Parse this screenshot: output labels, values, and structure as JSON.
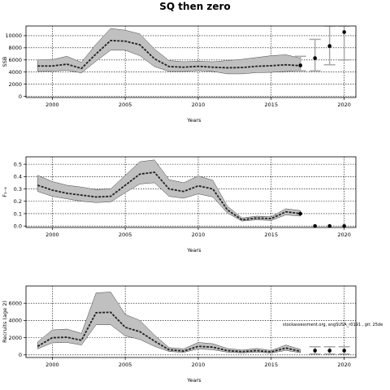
{
  "figure": {
    "title": "SQ then zero"
  },
  "chart_data": [
    {
      "type": "line",
      "id": "ssb",
      "title": "",
      "xlabel": "Years",
      "ylabel": "SSB",
      "xlim": [
        1998.2,
        2020.8
      ],
      "ylim": [
        -200,
        11600
      ],
      "xticks": [
        2000,
        2005,
        2010,
        2015,
        2020
      ],
      "yticks": [
        0,
        2000,
        4000,
        6000,
        8000,
        10000
      ],
      "ytick_labels": [
        "0",
        "2000",
        "4000",
        "6000",
        "8000",
        "10000"
      ],
      "grid": true,
      "historical": {
        "x": [
          1999,
          2000,
          2001,
          2002,
          2003,
          2004,
          2005,
          2006,
          2007,
          2008,
          2009,
          2010,
          2011,
          2012,
          2013,
          2014,
          2015,
          2016,
          2017
        ],
        "y": [
          5000,
          5000,
          5300,
          4600,
          7000,
          9200,
          9100,
          8500,
          6200,
          4900,
          4800,
          4950,
          4800,
          4700,
          4750,
          4950,
          5050,
          5200,
          5050
        ],
        "lower": [
          4100,
          4150,
          4300,
          3850,
          5800,
          7600,
          7600,
          6700,
          4900,
          4100,
          4100,
          4250,
          4100,
          3700,
          3700,
          3900,
          3950,
          4100,
          4200
        ],
        "upper": [
          6000,
          6050,
          6600,
          5600,
          8600,
          11200,
          10900,
          10300,
          7800,
          5900,
          5700,
          5800,
          5700,
          5900,
          6100,
          6400,
          6700,
          6850,
          6300
        ]
      },
      "projection": {
        "x": [
          2017,
          2018,
          2019,
          2020
        ],
        "y": [
          5100,
          6300,
          8300,
          10600
        ],
        "lower": [
          4200,
          4200,
          5200,
          6000
        ],
        "upper": [
          6600,
          9400,
          11600,
          11600
        ]
      }
    },
    {
      "type": "line",
      "id": "fishing-mortality",
      "title": "",
      "xlabel": "Years",
      "ylabel": "F₃₋₈",
      "xlim": [
        1998.2,
        2020.8
      ],
      "ylim": [
        -0.012,
        0.56
      ],
      "xticks": [
        2000,
        2005,
        2010,
        2015,
        2020
      ],
      "yticks": [
        0,
        0.1,
        0.2,
        0.3,
        0.4,
        0.5
      ],
      "ytick_labels": [
        "0.0",
        "0.1",
        "0.2",
        "0.3",
        "0.4",
        "0.5"
      ],
      "grid": true,
      "historical": {
        "x": [
          1999,
          2000,
          2001,
          2002,
          2003,
          2004,
          2005,
          2006,
          2007,
          2008,
          2009,
          2010,
          2011,
          2012,
          2013,
          2014,
          2015,
          2016,
          2017
        ],
        "y": [
          0.33,
          0.29,
          0.265,
          0.25,
          0.235,
          0.24,
          0.33,
          0.42,
          0.435,
          0.3,
          0.28,
          0.325,
          0.3,
          0.13,
          0.05,
          0.065,
          0.06,
          0.115,
          0.1
        ],
        "lower": [
          0.28,
          0.24,
          0.22,
          0.2,
          0.19,
          0.195,
          0.27,
          0.34,
          0.35,
          0.24,
          0.225,
          0.26,
          0.235,
          0.105,
          0.04,
          0.05,
          0.045,
          0.09,
          0.08
        ],
        "upper": [
          0.41,
          0.36,
          0.33,
          0.315,
          0.295,
          0.3,
          0.41,
          0.52,
          0.535,
          0.375,
          0.35,
          0.405,
          0.37,
          0.16,
          0.065,
          0.08,
          0.075,
          0.14,
          0.125
        ]
      },
      "projection": {
        "x": [
          2017,
          2018,
          2019,
          2020
        ],
        "y": [
          0.1,
          0,
          0,
          0
        ],
        "lower": [
          0.1,
          0,
          0,
          0
        ],
        "upper": [
          0.1,
          0,
          0,
          0
        ]
      }
    },
    {
      "type": "line",
      "id": "recruits",
      "title": "",
      "xlabel": "Years",
      "ylabel": "Recruits (age 2)",
      "xlim": [
        1998.2,
        2020.8
      ],
      "ylim": [
        -300,
        8000
      ],
      "xticks": [
        2000,
        2005,
        2010,
        2015,
        2020
      ],
      "yticks": [
        0,
        2000,
        4000,
        6000
      ],
      "ytick_labels": [
        "0",
        "2000",
        "4000",
        "6000"
      ],
      "grid": true,
      "annotation": "stockassessment.org, angSUSA_r0191 , git: 25de",
      "historical": {
        "x": [
          1999,
          2000,
          2001,
          2002,
          2003,
          2004,
          2005,
          2006,
          2007,
          2008,
          2009,
          2010,
          2011,
          2012,
          2013,
          2014,
          2015,
          2016,
          2017
        ],
        "y": [
          1000,
          2000,
          2050,
          1700,
          4900,
          4950,
          3200,
          2700,
          1600,
          600,
          450,
          1000,
          900,
          500,
          380,
          500,
          350,
          800,
          420
        ],
        "lower": [
          700,
          1400,
          1450,
          1150,
          3500,
          3500,
          2200,
          1800,
          1000,
          400,
          300,
          700,
          600,
          320,
          240,
          320,
          220,
          520,
          260
        ],
        "upper": [
          1500,
          2900,
          3000,
          2500,
          7200,
          7300,
          4700,
          4000,
          2300,
          850,
          700,
          1450,
          1300,
          750,
          560,
          750,
          520,
          1150,
          650
        ]
      },
      "projection": {
        "x": [
          2018,
          2019,
          2020
        ],
        "y": [
          500,
          500,
          500
        ],
        "lower": [
          100,
          100,
          100
        ],
        "upper": [
          950,
          950,
          950
        ]
      }
    }
  ],
  "colors": {
    "band": "#c0c0c0",
    "band_edge": "#444444",
    "line": "#222222",
    "projection_bar": "#a9a9a9",
    "point": "#000000",
    "grid": "#000000"
  }
}
